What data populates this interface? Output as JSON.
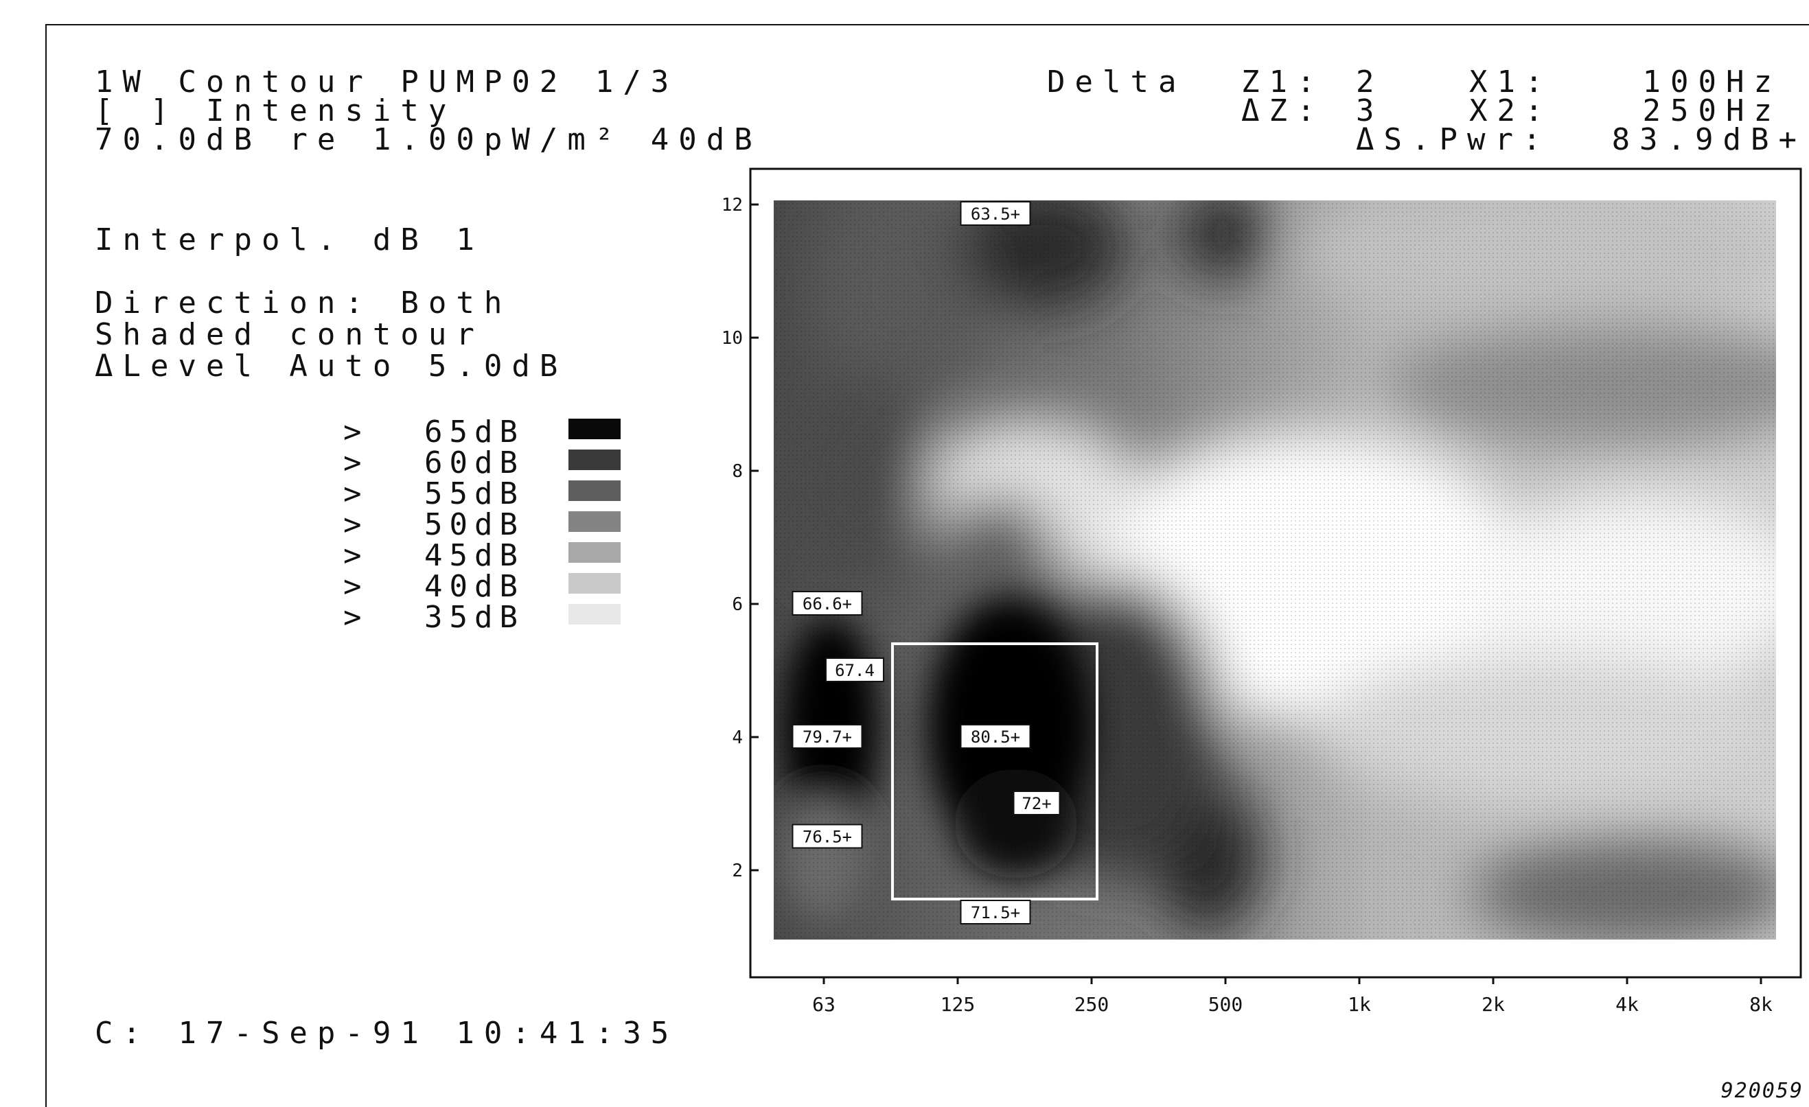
{
  "header": {
    "line1": "1W Contour PUMP02 1/3",
    "line2": "[ ] Intensity",
    "line3": "70.0dB re 1.00pW/m² 40dB",
    "delta_label": "Delta",
    "z1_label": "Z1:",
    "z1_value": "2",
    "dz_label": "ΔZ:",
    "dz_value": "3",
    "x1_label": "X1:",
    "x1_value": "100Hz",
    "x2_label": "X2:",
    "x2_value": "250Hz",
    "spwr_label": "ΔS.Pwr:",
    "spwr_value": "83.9dB+"
  },
  "settings": {
    "interpol": "Interpol. dB 1",
    "direction": "Direction: Both",
    "shading": "Shaded contour",
    "level": "ΔLevel Auto 5.0dB"
  },
  "legend": [
    {
      "marker": ">",
      "label": "65dB",
      "color": "#0a0a0a"
    },
    {
      "marker": ">",
      "label": "60dB",
      "color": "#3a3a3a"
    },
    {
      "marker": ">",
      "label": "55dB",
      "color": "#5e5e5e"
    },
    {
      "marker": ">",
      "label": "50dB",
      "color": "#848484"
    },
    {
      "marker": ">",
      "label": "45dB",
      "color": "#a8a8a8"
    },
    {
      "marker": ">",
      "label": "40dB",
      "color": "#c9c9c9"
    },
    {
      "marker": ">",
      "label": "35dB",
      "color": "#e8e8e8"
    }
  ],
  "timestamp": "C: 17-Sep-91 10:41:35",
  "figure_id": "920059",
  "chart_data": {
    "type": "heatmap",
    "x_ticks": [
      "63",
      "125",
      "250",
      "500",
      "1k",
      "2k",
      "4k",
      "8k"
    ],
    "y_ticks": [
      "2",
      "4",
      "6",
      "8",
      "10",
      "12"
    ],
    "ylim": [
      1,
      12
    ],
    "cell_labels": [
      {
        "x": "125-250",
        "y": 12,
        "label": "63.5+"
      },
      {
        "x": "63",
        "y": 6,
        "label": "66.6+"
      },
      {
        "x": "63-125",
        "y": 5,
        "label": "67.4"
      },
      {
        "x": "63",
        "y": 4,
        "label": "79.7+"
      },
      {
        "x": "125-250",
        "y": 4,
        "label": "80.5+"
      },
      {
        "x": "250",
        "y": 3,
        "label": "72+"
      },
      {
        "x": "63",
        "y": 2.5,
        "label": "76.5+"
      },
      {
        "x": "125-250",
        "y": 1.3,
        "label": "71.5+"
      }
    ],
    "legend_levels_db": [
      65,
      60,
      55,
      50,
      45,
      40,
      35
    ]
  }
}
